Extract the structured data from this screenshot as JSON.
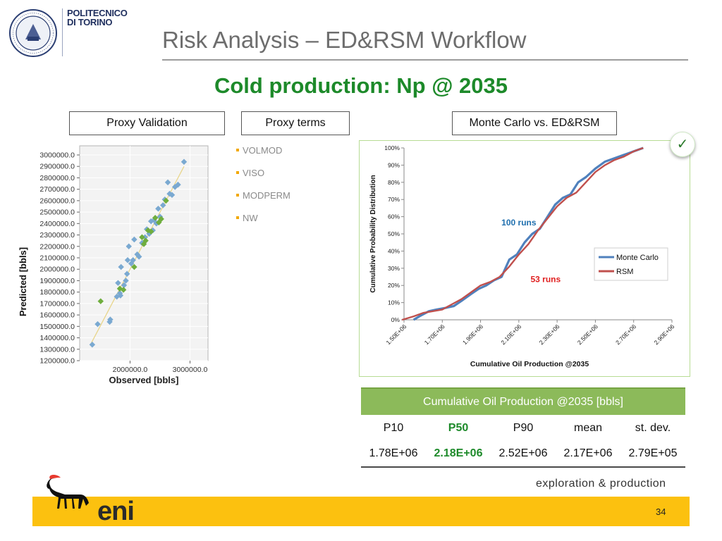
{
  "header": {
    "university_lines": [
      "POLITECNICO",
      "DI TORINO"
    ],
    "title": "Risk Analysis – ED&RSM Workflow",
    "subtitle": "Cold production: Np @ 2035"
  },
  "labels": {
    "proxy_validation": "Proxy Validation",
    "proxy_terms": "Proxy terms",
    "mc_vs_rsm": "Monte Carlo vs. ED&RSM"
  },
  "proxy_terms": [
    "VOLMOD",
    "VISO",
    "MODPERM",
    "NW"
  ],
  "colors": {
    "title_gray": "#6d6d6d",
    "subtitle_green": "#1d8a2a",
    "table_header_green": "#8cba5a",
    "monte_carlo_blue": "#4f81bd",
    "rsm_red": "#c0504d",
    "runs_100_blue": "#1f6fae",
    "runs_53_red": "#e02020",
    "band_yellow": "#fcc10f",
    "scatter_blue": "#7aa9d1",
    "scatter_green": "#6fae3e",
    "fit_line": "#e8d58a"
  },
  "chart_data": [
    {
      "type": "scatter",
      "xlabel": "Observed [bbls]",
      "ylabel": "Predicted [bbls]",
      "xlim": [
        1160000,
        3300000
      ],
      "ylim": [
        1200000,
        3080000
      ],
      "x_ticks": [
        "2000000.0",
        "3000000.0"
      ],
      "x_tick_values": [
        2000000,
        3000000
      ],
      "y_ticks": [
        "1200000.0",
        "1300000.0",
        "1400000.0",
        "1500000.0",
        "1600000.0",
        "1700000.0",
        "1800000.0",
        "1900000.0",
        "2000000.0",
        "2100000.0",
        "2200000.0",
        "2300000.0",
        "2400000.0",
        "2500000.0",
        "2600000.0",
        "2700000.0",
        "2800000.0",
        "2900000.0",
        "3000000.0"
      ],
      "y_tick_values": [
        1200000,
        1300000,
        1400000,
        1500000,
        1600000,
        1700000,
        1800000,
        1900000,
        2000000,
        2100000,
        2200000,
        2300000,
        2400000,
        2500000,
        2600000,
        2700000,
        2800000,
        2900000,
        3000000
      ],
      "fit_line": [
        [
          1350000,
          1350000
        ],
        [
          2900000,
          2900000
        ]
      ],
      "series": [
        {
          "marker_color": "blue",
          "points": [
            [
              1370000,
              1340000
            ],
            [
              1460000,
              1520000
            ],
            [
              1660000,
              1540000
            ],
            [
              1670000,
              1560000
            ],
            [
              1780000,
              1760000
            ],
            [
              1800000,
              1880000
            ],
            [
              1830000,
              1790000
            ],
            [
              1840000,
              1770000
            ],
            [
              1850000,
              2020000
            ],
            [
              1900000,
              1860000
            ],
            [
              1930000,
              1900000
            ],
            [
              1950000,
              1960000
            ],
            [
              1960000,
              2080000
            ],
            [
              1980000,
              2200000
            ],
            [
              2020000,
              2050000
            ],
            [
              2050000,
              2080000
            ],
            [
              2070000,
              2260000
            ],
            [
              2120000,
              2130000
            ],
            [
              2150000,
              2110000
            ],
            [
              2200000,
              2230000
            ],
            [
              2250000,
              2280000
            ],
            [
              2280000,
              2350000
            ],
            [
              2320000,
              2310000
            ],
            [
              2350000,
              2420000
            ],
            [
              2380000,
              2340000
            ],
            [
              2400000,
              2430000
            ],
            [
              2440000,
              2400000
            ],
            [
              2470000,
              2530000
            ],
            [
              2500000,
              2460000
            ],
            [
              2550000,
              2560000
            ],
            [
              2580000,
              2610000
            ],
            [
              2630000,
              2760000
            ],
            [
              2660000,
              2660000
            ],
            [
              2700000,
              2650000
            ],
            [
              2750000,
              2720000
            ],
            [
              2800000,
              2740000
            ],
            [
              2900000,
              2940000
            ]
          ]
        },
        {
          "marker_color": "green",
          "points": [
            [
              1510000,
              1720000
            ],
            [
              1830000,
              1830000
            ],
            [
              1890000,
              1820000
            ],
            [
              2070000,
              2020000
            ],
            [
              2200000,
              2280000
            ],
            [
              2230000,
              2220000
            ],
            [
              2260000,
              2250000
            ],
            [
              2300000,
              2340000
            ],
            [
              2350000,
              2330000
            ],
            [
              2420000,
              2450000
            ],
            [
              2480000,
              2410000
            ],
            [
              2520000,
              2440000
            ],
            [
              2600000,
              2600000
            ]
          ]
        }
      ]
    },
    {
      "type": "line",
      "xlabel": "Cumulative Oil Production @2035",
      "ylabel": "Cumulative Probability Distribution",
      "xlim": [
        1500000,
        2900000
      ],
      "ylim": [
        0,
        1
      ],
      "x_ticks": [
        "1.50E+06",
        "1.70E+06",
        "1.90E+06",
        "2.10E+06",
        "2.30E+06",
        "2.50E+06",
        "2.70E+06",
        "2.90E+06"
      ],
      "x_tick_values": [
        1500000,
        1700000,
        1900000,
        2100000,
        2300000,
        2500000,
        2700000,
        2900000
      ],
      "y_ticks": [
        "0%",
        "10%",
        "20%",
        "30%",
        "40%",
        "50%",
        "60%",
        "70%",
        "80%",
        "90%",
        "100%"
      ],
      "y_tick_values": [
        0,
        0.1,
        0.2,
        0.3,
        0.4,
        0.5,
        0.6,
        0.7,
        0.8,
        0.9,
        1.0
      ],
      "grid": false,
      "legend": "right",
      "annotations": [
        {
          "text": "100 runs",
          "x": 2100000,
          "y": 0.55
        },
        {
          "text": "53 runs",
          "x": 2240000,
          "y": 0.22
        }
      ],
      "series": [
        {
          "name": "Monte Carlo",
          "x": [
            1550000,
            1580000,
            1630000,
            1670000,
            1720000,
            1760000,
            1800000,
            1850000,
            1890000,
            1930000,
            1970000,
            2010000,
            2050000,
            2090000,
            2130000,
            2170000,
            2210000,
            2250000,
            2290000,
            2330000,
            2370000,
            2410000,
            2450000,
            2500000,
            2550000,
            2600000,
            2650000,
            2700000,
            2750000
          ],
          "y": [
            0.0,
            0.02,
            0.05,
            0.06,
            0.07,
            0.08,
            0.11,
            0.15,
            0.18,
            0.2,
            0.23,
            0.25,
            0.35,
            0.38,
            0.45,
            0.5,
            0.53,
            0.6,
            0.67,
            0.71,
            0.73,
            0.8,
            0.83,
            0.88,
            0.92,
            0.94,
            0.96,
            0.98,
            1.0
          ]
        },
        {
          "name": "RSM",
          "x": [
            1490000,
            1550000,
            1600000,
            1650000,
            1700000,
            1750000,
            1800000,
            1850000,
            1900000,
            1950000,
            2000000,
            2050000,
            2100000,
            2150000,
            2200000,
            2250000,
            2300000,
            2350000,
            2400000,
            2450000,
            2500000,
            2550000,
            2600000,
            2650000,
            2700000,
            2750000
          ],
          "y": [
            0.0,
            0.02,
            0.04,
            0.05,
            0.06,
            0.09,
            0.12,
            0.16,
            0.2,
            0.22,
            0.25,
            0.31,
            0.38,
            0.44,
            0.52,
            0.59,
            0.66,
            0.71,
            0.74,
            0.8,
            0.86,
            0.9,
            0.93,
            0.95,
            0.98,
            1.0
          ]
        }
      ]
    }
  ],
  "stats_table": {
    "header": "Cumulative Oil Production @2035 [bbls]",
    "columns": [
      "P10",
      "P50",
      "P90",
      "mean",
      "st. dev."
    ],
    "values": [
      "1.78E+06",
      "2.18E+06",
      "2.52E+06",
      "2.17E+06",
      "2.79E+05"
    ],
    "highlight_column": "P50"
  },
  "footer": {
    "division": "exploration & production",
    "company": "eni",
    "page_number": "34"
  },
  "icons": {
    "badge": "check-icon",
    "seal": "university-seal-icon",
    "company_logo": "six-legged-dog-icon"
  }
}
